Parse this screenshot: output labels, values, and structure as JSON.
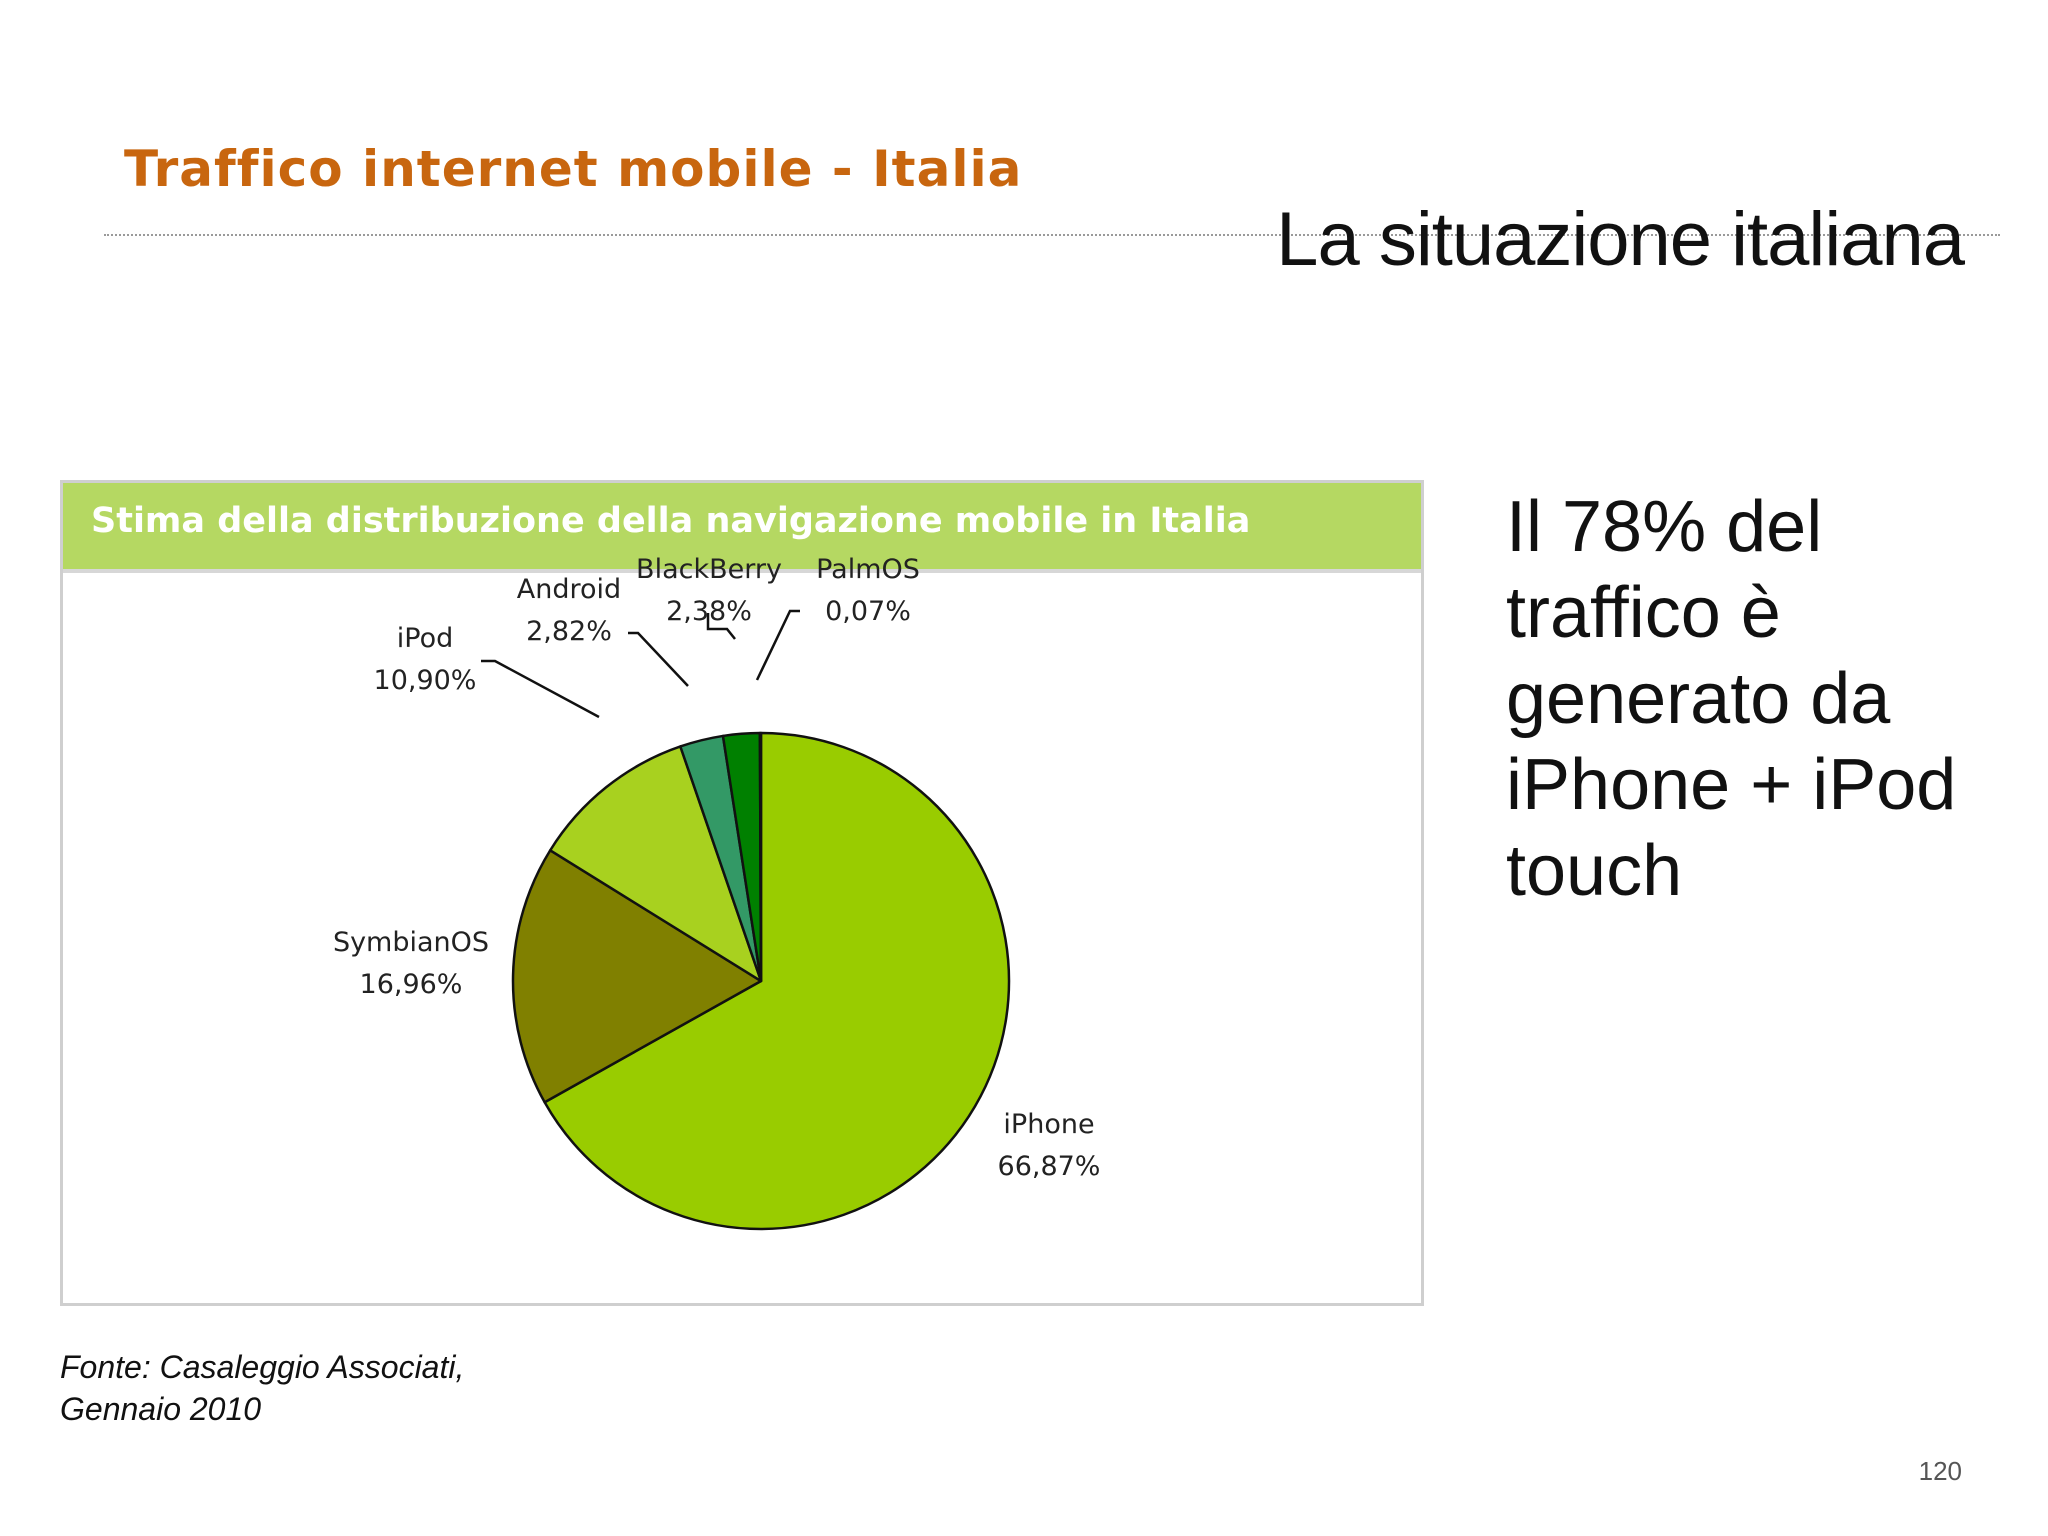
{
  "slide": {
    "header": "Traffico internet mobile - Italia",
    "title": "La situazione italiana",
    "side_text": "Il 78% del traffico è generato da iPhone + iPod touch",
    "source": "Fonte: Casaleggio Associati, Gennaio 2010",
    "page_number": "120"
  },
  "chart_data": {
    "type": "pie",
    "title": "Stima della distribuzione della navigazione mobile in Italia",
    "slices": [
      {
        "label": "iPhone",
        "value": 66.87,
        "value_label": "66,87%",
        "color": "#99cc00"
      },
      {
        "label": "SymbianOS",
        "value": 16.96,
        "value_label": "16,96%",
        "color": "#808000"
      },
      {
        "label": "iPod",
        "value": 10.9,
        "value_label": "10,90%",
        "color": "#a8d11f"
      },
      {
        "label": "Android",
        "value": 2.82,
        "value_label": "2,82%",
        "color": "#339966"
      },
      {
        "label": "BlackBerry",
        "value": 2.38,
        "value_label": "2,38%",
        "color": "#008000"
      },
      {
        "label": "PalmOS",
        "value": 0.07,
        "value_label": "0,07%",
        "color": "#1a3d1a"
      }
    ],
    "start": "12 o'clock",
    "direction": "clockwise",
    "legend": "none (labels next to slices)"
  }
}
